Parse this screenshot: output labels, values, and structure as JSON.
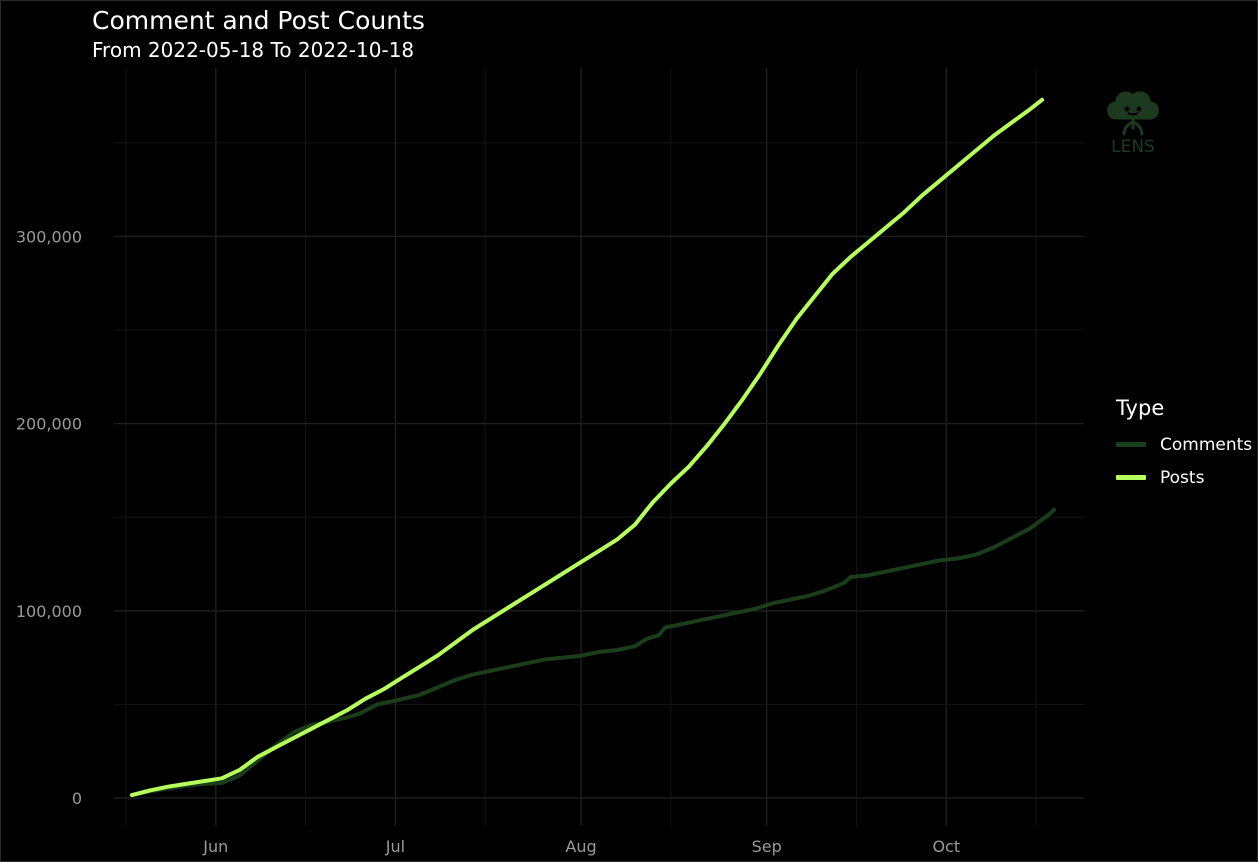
{
  "title": "Comment and Post Counts",
  "subtitle": "From 2022-05-18 To 2022-10-18",
  "logo": {
    "text": "LENS",
    "color": "#1e3a1e"
  },
  "colors": {
    "comments": "#1a3d1a",
    "posts": "#b6ff5c",
    "grid": "#1f1f1f",
    "tick": "#9a9a9a"
  },
  "chart_data": {
    "type": "line",
    "title": "Comment and Post Counts",
    "subtitle": "From 2022-05-18 To 2022-10-18",
    "xlabel": "",
    "ylabel": "",
    "x_start": "2022-05-18",
    "x_end": "2022-10-18",
    "x_range_days": [
      -3,
      159
    ],
    "ylim": [
      -15000,
      390000
    ],
    "y_ticks": [
      0,
      100000,
      200000,
      300000
    ],
    "y_tick_labels": [
      "0",
      "100,000",
      "200,000",
      "300,000"
    ],
    "x_ticks": [
      {
        "day": 14,
        "label": "Jun"
      },
      {
        "day": 44,
        "label": "Jul"
      },
      {
        "day": 75,
        "label": "Aug"
      },
      {
        "day": 106,
        "label": "Sep"
      },
      {
        "day": 136,
        "label": "Oct"
      }
    ],
    "x_minor_days": [
      -1,
      29,
      59,
      90,
      121,
      151
    ],
    "legend_title": "Type",
    "legend_position": "right",
    "series": [
      {
        "name": "Comments",
        "color": "#1a3d1a",
        "points": [
          [
            0,
            1500
          ],
          [
            3,
            3500
          ],
          [
            6,
            5000
          ],
          [
            9,
            6500
          ],
          [
            12,
            7500
          ],
          [
            15,
            8000
          ],
          [
            18,
            12000
          ],
          [
            21,
            20000
          ],
          [
            24,
            28000
          ],
          [
            27,
            35000
          ],
          [
            30,
            39000
          ],
          [
            33,
            41000
          ],
          [
            36,
            43000
          ],
          [
            38,
            45000
          ],
          [
            41,
            50000
          ],
          [
            44,
            52000
          ],
          [
            48,
            55000
          ],
          [
            51,
            59000
          ],
          [
            54,
            63000
          ],
          [
            57,
            66000
          ],
          [
            60,
            68000
          ],
          [
            63,
            70000
          ],
          [
            66,
            72000
          ],
          [
            69,
            74000
          ],
          [
            72,
            75000
          ],
          [
            75,
            76000
          ],
          [
            78,
            78000
          ],
          [
            81,
            79000
          ],
          [
            84,
            81000
          ],
          [
            86,
            85000
          ],
          [
            88,
            87000
          ],
          [
            89,
            91000
          ],
          [
            92,
            93000
          ],
          [
            95,
            95000
          ],
          [
            98,
            97000
          ],
          [
            101,
            99000
          ],
          [
            104,
            101000
          ],
          [
            107,
            104000
          ],
          [
            110,
            106000
          ],
          [
            113,
            108000
          ],
          [
            116,
            111000
          ],
          [
            119,
            115000
          ],
          [
            120,
            118000
          ],
          [
            123,
            119000
          ],
          [
            126,
            121000
          ],
          [
            129,
            123000
          ],
          [
            132,
            125000
          ],
          [
            135,
            127000
          ],
          [
            138,
            128000
          ],
          [
            141,
            130000
          ],
          [
            144,
            134000
          ],
          [
            147,
            139000
          ],
          [
            150,
            144000
          ],
          [
            153,
            151000
          ],
          [
            154,
            154000
          ]
        ]
      },
      {
        "name": "Posts",
        "color": "#b6ff5c",
        "points": [
          [
            0,
            1500
          ],
          [
            3,
            4000
          ],
          [
            6,
            6000
          ],
          [
            9,
            7500
          ],
          [
            12,
            9000
          ],
          [
            15,
            10500
          ],
          [
            18,
            15000
          ],
          [
            21,
            22000
          ],
          [
            24,
            27000
          ],
          [
            27,
            32000
          ],
          [
            30,
            37000
          ],
          [
            33,
            42000
          ],
          [
            36,
            47000
          ],
          [
            39,
            53000
          ],
          [
            42,
            58000
          ],
          [
            45,
            64000
          ],
          [
            48,
            70000
          ],
          [
            51,
            76000
          ],
          [
            54,
            83000
          ],
          [
            57,
            90000
          ],
          [
            60,
            96000
          ],
          [
            63,
            102000
          ],
          [
            66,
            108000
          ],
          [
            69,
            114000
          ],
          [
            72,
            120000
          ],
          [
            75,
            126000
          ],
          [
            78,
            132000
          ],
          [
            81,
            138000
          ],
          [
            84,
            146000
          ],
          [
            87,
            158000
          ],
          [
            90,
            168000
          ],
          [
            93,
            177000
          ],
          [
            96,
            188000
          ],
          [
            99,
            200000
          ],
          [
            102,
            213000
          ],
          [
            105,
            227000
          ],
          [
            108,
            242000
          ],
          [
            111,
            256000
          ],
          [
            114,
            268000
          ],
          [
            117,
            280000
          ],
          [
            120,
            289000
          ],
          [
            123,
            297000
          ],
          [
            126,
            305000
          ],
          [
            129,
            313000
          ],
          [
            132,
            322000
          ],
          [
            135,
            330000
          ],
          [
            138,
            338000
          ],
          [
            141,
            346000
          ],
          [
            144,
            354000
          ],
          [
            147,
            361000
          ],
          [
            150,
            368000
          ],
          [
            152,
            373000
          ]
        ]
      }
    ]
  }
}
